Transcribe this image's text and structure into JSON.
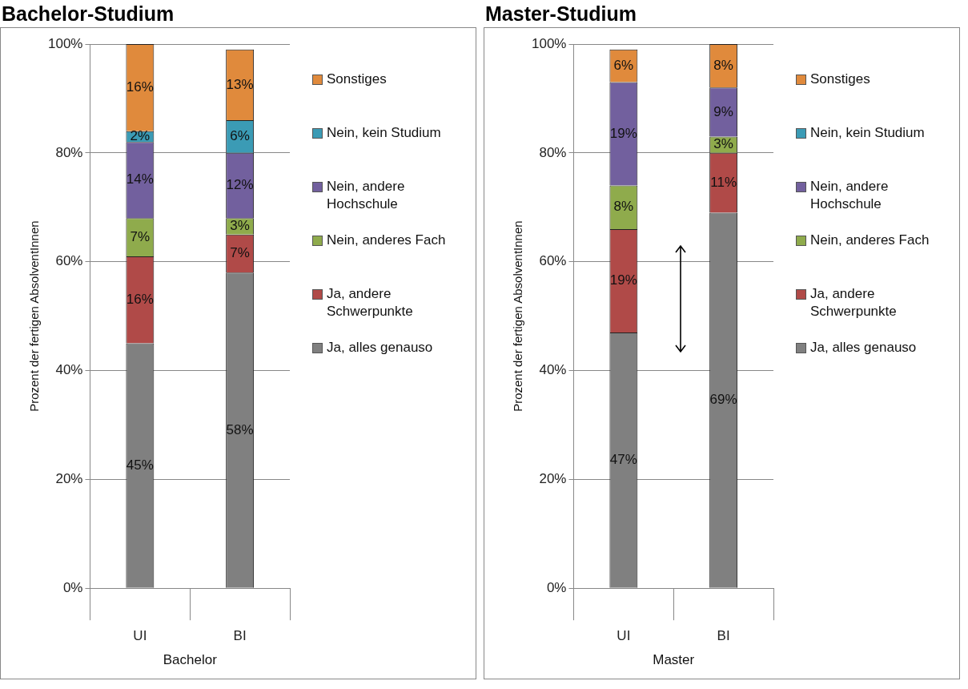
{
  "chart_data": [
    {
      "type": "bar",
      "title": "Bachelor-Studium",
      "xlabel": "Bachelor",
      "ylabel": "Prozent der fertigen AbsolventInnen",
      "categories": [
        "UI",
        "BI"
      ],
      "stacked": true,
      "ylim": [
        0,
        100
      ],
      "yticks": [
        {
          "value": 0,
          "label": "0%"
        },
        {
          "value": 20,
          "label": "20%"
        },
        {
          "value": 40,
          "label": "40%"
        },
        {
          "value": 60,
          "label": "60%"
        },
        {
          "value": 80,
          "label": "80%"
        },
        {
          "value": 100,
          "label": "100%"
        }
      ],
      "grid": "y",
      "legend": "right",
      "series": [
        {
          "name": "Ja, alles genauso",
          "color": "#808080",
          "values": [
            45,
            58
          ],
          "value_labels": [
            "45%",
            "58%"
          ]
        },
        {
          "name": "Ja, andere Schwerpunkte",
          "color": "#b04a48",
          "values": [
            16,
            7
          ],
          "value_labels": [
            "16%",
            "7%"
          ]
        },
        {
          "name": "Nein, anderes Fach",
          "color": "#8fab4c",
          "values": [
            7,
            3
          ],
          "value_labels": [
            "7%",
            "3%"
          ]
        },
        {
          "name": "Nein, andere Hochschule",
          "color": "#72609e",
          "values": [
            14,
            12
          ],
          "value_labels": [
            "14%",
            "12%"
          ]
        },
        {
          "name": "Nein, kein Studium",
          "color": "#3b9bb5",
          "values": [
            2,
            6
          ],
          "value_labels": [
            "2%",
            "6%"
          ]
        },
        {
          "name": "Sonstiges",
          "color": "#e08a3c",
          "values": [
            16,
            13
          ],
          "value_labels": [
            "16%",
            "13%"
          ]
        }
      ]
    },
    {
      "type": "bar",
      "title": "Master-Studium",
      "xlabel": "Master",
      "ylabel": "Prozent der fertigen AbsolventInnen",
      "categories": [
        "UI",
        "BI"
      ],
      "stacked": true,
      "ylim": [
        0,
        100
      ],
      "yticks": [
        {
          "value": 0,
          "label": "0%"
        },
        {
          "value": 20,
          "label": "20%"
        },
        {
          "value": 40,
          "label": "40%"
        },
        {
          "value": 60,
          "label": "60%"
        },
        {
          "value": 80,
          "label": "80%"
        },
        {
          "value": 100,
          "label": "100%"
        }
      ],
      "grid": "y",
      "legend": "right",
      "series": [
        {
          "name": "Ja, alles genauso",
          "color": "#808080",
          "values": [
            47,
            69
          ],
          "value_labels": [
            "47%",
            "69%"
          ]
        },
        {
          "name": "Ja, andere Schwerpunkte",
          "color": "#b04a48",
          "values": [
            19,
            11
          ],
          "value_labels": [
            "19%",
            "11%"
          ]
        },
        {
          "name": "Nein, anderes Fach",
          "color": "#8fab4c",
          "values": [
            8,
            3
          ],
          "value_labels": [
            "8%",
            "3%"
          ]
        },
        {
          "name": "Nein, andere Hochschule",
          "color": "#72609e",
          "values": [
            19,
            9
          ],
          "value_labels": [
            "19%",
            "9%"
          ]
        },
        {
          "name": "Nein, kein Studium",
          "color": "#3b9bb5",
          "values": [
            null,
            null
          ],
          "value_labels": [
            null,
            null
          ]
        },
        {
          "name": "Sonstiges",
          "color": "#e08a3c",
          "values": [
            6,
            8
          ],
          "value_labels": [
            "6%",
            "8%"
          ]
        }
      ]
    }
  ]
}
